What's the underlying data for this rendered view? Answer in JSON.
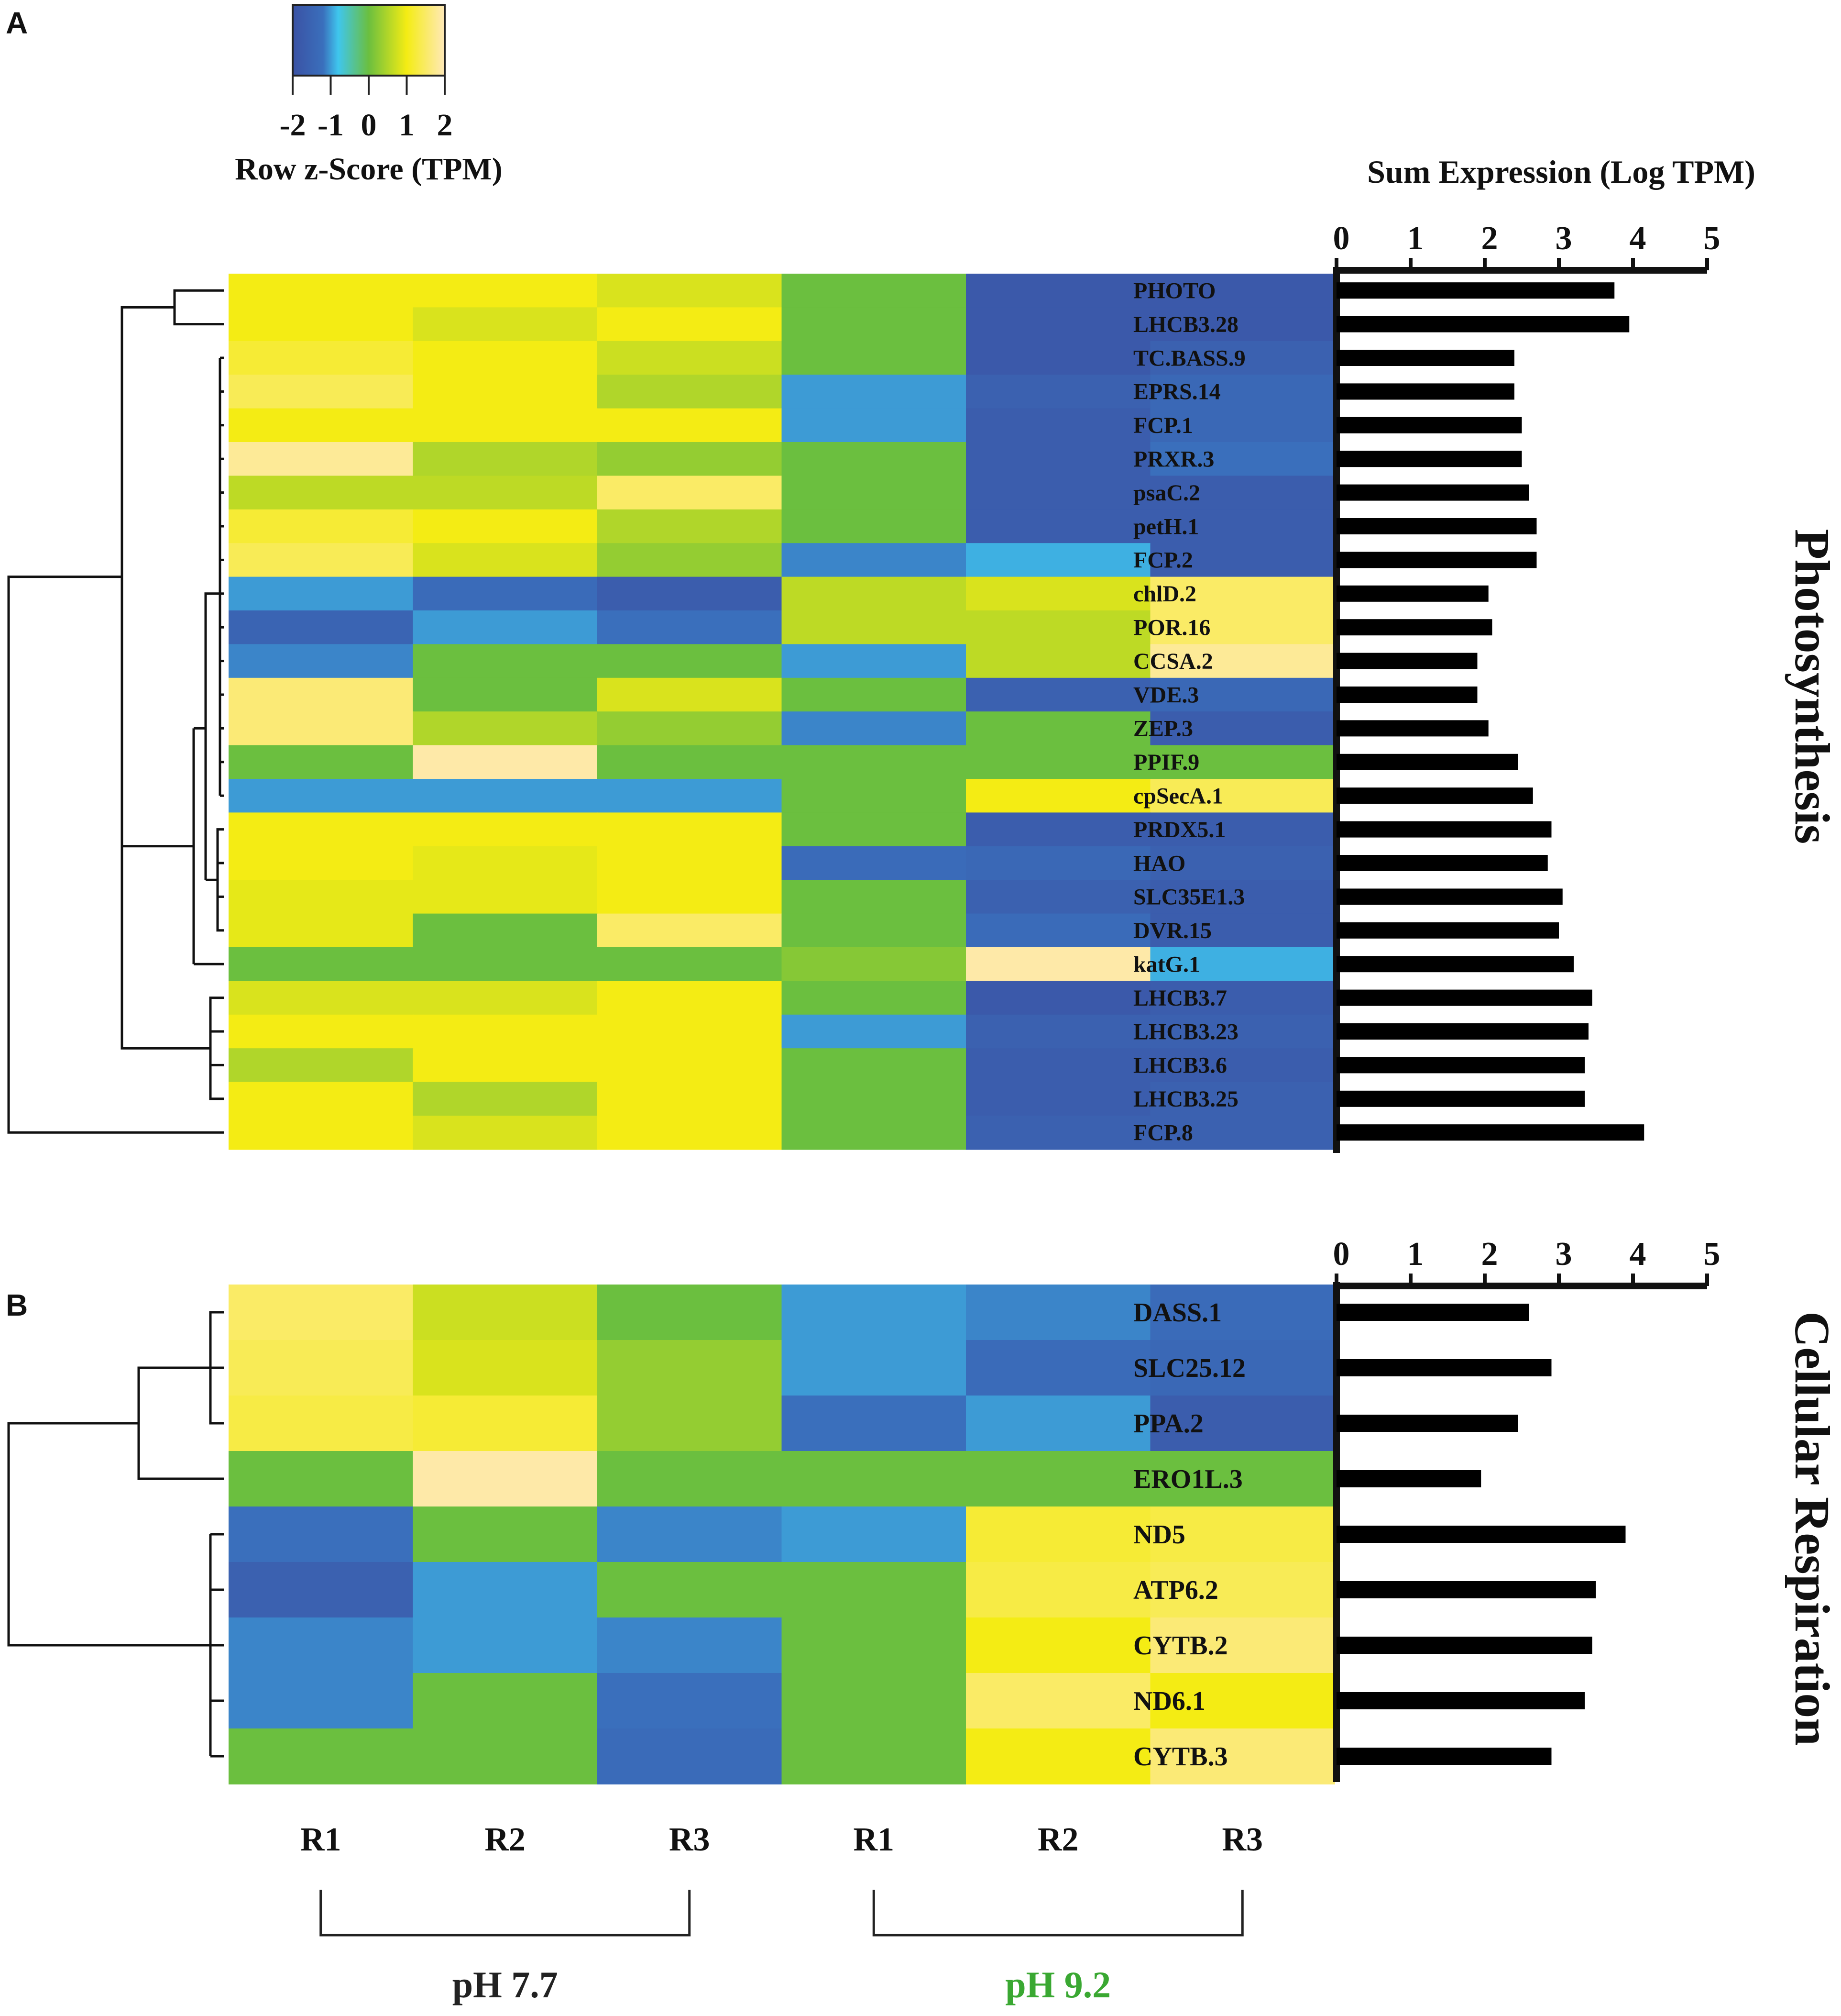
{
  "panels": {
    "a_label": "A",
    "b_label": "B"
  },
  "legend": {
    "title": "Row z-Score (TPM)",
    "ticks": [
      "-2",
      "-1",
      "0",
      "1",
      "2"
    ],
    "tick_values": [
      -2,
      -1,
      0,
      1,
      2
    ],
    "range": [
      -2,
      2
    ],
    "colors": [
      "#3b52a4",
      "#3a6fbc",
      "#3fc6ee",
      "#6bbf3f",
      "#f4ec14",
      "#ffe9b8"
    ]
  },
  "bar_axis": {
    "title": "Sum Expression (Log TPM)",
    "ticks": [
      "0",
      "1",
      "2",
      "3",
      "4",
      "5"
    ],
    "tick_values": [
      0,
      1,
      2,
      3,
      4,
      5
    ],
    "range": [
      0,
      5
    ]
  },
  "section_labels": {
    "photosynthesis": "Photosynthesis",
    "respiration": "Cellular Respiration"
  },
  "columns": {
    "labels": [
      "R1",
      "R2",
      "R3",
      "R1",
      "R2",
      "R3"
    ],
    "groups": [
      {
        "label": "pH 7.7",
        "color": "#222222"
      },
      {
        "label": "pH 9.2",
        "color": "#3aa832"
      }
    ]
  },
  "chart_data": [
    {
      "type": "heatmap",
      "panel": "A",
      "title": "Photosynthesis",
      "colorbar_title": "Row z-Score (TPM)",
      "columns": [
        "R1",
        "R2",
        "R3",
        "R1",
        "R2",
        "R3"
      ],
      "rows": [
        "PHOTO",
        "LHCB3.28",
        "TC.BASS.9",
        "EPRS.14",
        "FCP.1",
        "PRXR.3",
        "psaC.2",
        "petH.1",
        "FCP.2",
        "chlD.2",
        "POR.16",
        "CCSA.2",
        "VDE.3",
        "ZEP.3",
        "PPIF.9",
        "cpSecA.1",
        "PRDX5.1",
        "HAO",
        "SLC35E1.3",
        "DVR.15",
        "katG.1",
        "LHCB3.7",
        "LHCB3.23",
        "LHCB3.6",
        "LHCB3.25",
        "FCP.8"
      ],
      "values": [
        [
          1.0,
          1.0,
          0.8,
          0,
          -1.8,
          -1.8
        ],
        [
          1.0,
          0.8,
          1.0,
          0,
          -1.8,
          -1.8
        ],
        [
          1.2,
          1.0,
          0.7,
          0,
          -1.8,
          -1.6
        ],
        [
          1.4,
          1.0,
          0.5,
          -1.0,
          -1.6,
          -1.4
        ],
        [
          1.0,
          1.0,
          1.0,
          -1.0,
          -1.7,
          -1.4
        ],
        [
          1.8,
          0.5,
          0.3,
          0,
          -1.7,
          -1.2
        ],
        [
          0.6,
          0.6,
          1.5,
          0,
          -1.7,
          -1.7
        ],
        [
          1.2,
          1.0,
          0.5,
          0,
          -1.7,
          -1.7
        ],
        [
          1.4,
          0.8,
          0.3,
          -1.1,
          -0.9,
          -1.7
        ],
        [
          -1.0,
          -1.3,
          -1.7,
          0.6,
          0.8,
          1.5
        ],
        [
          -1.5,
          -1.0,
          -1.2,
          0.6,
          0.6,
          1.5
        ],
        [
          -1.1,
          0,
          0,
          -1.0,
          0.6,
          1.8
        ],
        [
          1.6,
          0,
          0.8,
          0,
          -1.6,
          -1.4
        ],
        [
          1.6,
          0.5,
          0.3,
          -1.1,
          0,
          -1.7
        ],
        [
          0,
          1.9,
          0,
          0,
          0,
          0
        ],
        [
          -1.0,
          -1.0,
          -1.0,
          0,
          1.0,
          1.4
        ],
        [
          1.0,
          1.0,
          1.0,
          0,
          -1.7,
          -1.7
        ],
        [
          1.0,
          0.9,
          1.0,
          -1.3,
          -1.4,
          -1.6
        ],
        [
          0.9,
          0.9,
          1.0,
          0,
          -1.6,
          -1.7
        ],
        [
          0.9,
          0,
          1.5,
          0,
          -1.3,
          -1.7
        ],
        [
          0,
          0,
          0,
          0.2,
          1.9,
          -0.9
        ],
        [
          0.8,
          0.8,
          1.0,
          0,
          -1.8,
          -1.7
        ],
        [
          1.0,
          1.0,
          1.0,
          -1.0,
          -1.6,
          -1.6
        ],
        [
          0.5,
          1.0,
          1.0,
          0,
          -1.7,
          -1.7
        ],
        [
          1.0,
          0.5,
          1.0,
          0,
          -1.7,
          -1.6
        ],
        [
          1.0,
          0.8,
          1.0,
          0,
          -1.6,
          -1.6
        ]
      ]
    },
    {
      "type": "bar",
      "panel": "A",
      "orientation": "horizontal",
      "title": "Sum Expression (Log TPM)",
      "categories": [
        "PHOTO",
        "LHCB3.28",
        "TC.BASS.9",
        "EPRS.14",
        "FCP.1",
        "PRXR.3",
        "psaC.2",
        "petH.1",
        "FCP.2",
        "chlD.2",
        "POR.16",
        "CCSA.2",
        "VDE.3",
        "ZEP.3",
        "PPIF.9",
        "cpSecA.1",
        "PRDX5.1",
        "HAO",
        "SLC35E1.3",
        "DVR.15",
        "katG.1",
        "LHCB3.7",
        "LHCB3.23",
        "LHCB3.6",
        "LHCB3.25",
        "FCP.8"
      ],
      "values": [
        3.75,
        3.95,
        2.4,
        2.4,
        2.5,
        2.5,
        2.6,
        2.7,
        2.7,
        2.05,
        2.1,
        1.9,
        1.9,
        2.05,
        2.45,
        2.65,
        2.9,
        2.85,
        3.05,
        3.0,
        3.2,
        3.45,
        3.4,
        3.35,
        3.35,
        4.15
      ],
      "xlim": [
        0,
        5
      ]
    },
    {
      "type": "heatmap",
      "panel": "B",
      "title": "Cellular Respiration",
      "columns": [
        "R1",
        "R2",
        "R3",
        "R1",
        "R2",
        "R3"
      ],
      "rows": [
        "DASS.1",
        "SLC25.12",
        "PPA.2",
        "ERO1L.3",
        "ND5",
        "ATP6.2",
        "CYTB.2",
        "ND6.1",
        "CYTB.3"
      ],
      "values": [
        [
          1.5,
          0.7,
          0,
          -1.0,
          -1.1,
          -1.3
        ],
        [
          1.4,
          0.8,
          0.3,
          -1.0,
          -1.3,
          -1.4
        ],
        [
          1.3,
          1.2,
          0.3,
          -1.2,
          -1.0,
          -1.7
        ],
        [
          0,
          1.9,
          0,
          0,
          0,
          0
        ],
        [
          -1.2,
          0,
          -1.1,
          -1.0,
          1.2,
          1.3
        ],
        [
          -1.6,
          -1.0,
          0,
          0,
          1.3,
          1.4
        ],
        [
          -1.1,
          -1.0,
          -1.1,
          0,
          1.0,
          1.6
        ],
        [
          -1.1,
          0,
          -1.2,
          0,
          1.5,
          1.0
        ],
        [
          0,
          0,
          -1.3,
          0,
          1.0,
          1.6
        ]
      ]
    },
    {
      "type": "bar",
      "panel": "B",
      "orientation": "horizontal",
      "categories": [
        "DASS.1",
        "SLC25.12",
        "PPA.2",
        "ERO1L.3",
        "ND5",
        "ATP6.2",
        "CYTB.2",
        "ND6.1",
        "CYTB.3"
      ],
      "values": [
        2.6,
        2.9,
        2.45,
        1.95,
        3.9,
        3.5,
        3.45,
        3.35,
        2.9
      ],
      "xlim": [
        0,
        5
      ]
    }
  ]
}
